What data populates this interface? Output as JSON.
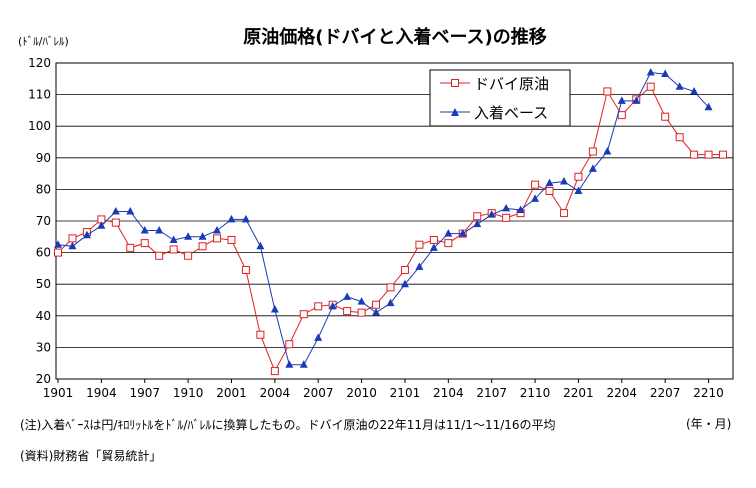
{
  "chart_data": {
    "type": "line",
    "title": "原油価格(ドバイと入着ベース)の推移",
    "unit_label": "(ﾄﾞﾙ/ﾊﾞﾚﾙ)",
    "x_axis_unit": "(年・月)",
    "ylim": [
      20,
      120
    ],
    "yticks": [
      20,
      30,
      40,
      50,
      60,
      70,
      80,
      90,
      100,
      110,
      120
    ],
    "grid": true,
    "legend_position": "top-right",
    "x_tick_labels": [
      "1901",
      "1904",
      "1907",
      "1910",
      "2001",
      "2004",
      "2007",
      "2010",
      "2101",
      "2104",
      "2107",
      "2110",
      "2201",
      "2204",
      "2207",
      "2210"
    ],
    "categories": [
      "1901",
      "1902",
      "1903",
      "1904",
      "1905",
      "1906",
      "1907",
      "1908",
      "1909",
      "1910",
      "1911",
      "1912",
      "2001",
      "2002",
      "2003",
      "2004",
      "2005",
      "2006",
      "2007",
      "2008",
      "2009",
      "2010",
      "2011",
      "2012",
      "2101",
      "2102",
      "2103",
      "2104",
      "2105",
      "2106",
      "2107",
      "2108",
      "2109",
      "2110",
      "2111",
      "2112",
      "2201",
      "2202",
      "2203",
      "2204",
      "2205",
      "2206",
      "2207",
      "2208",
      "2209",
      "2210",
      "2211"
    ],
    "series": [
      {
        "name": "ドバイ原油",
        "color": "#e02020",
        "marker": "open-square",
        "values": [
          60,
          64.5,
          66.5,
          70.5,
          69.5,
          61.5,
          63,
          59,
          61,
          59,
          62,
          64.5,
          64,
          54.5,
          34,
          22.5,
          31,
          40.5,
          43,
          43.5,
          41.5,
          41,
          43.5,
          49,
          54.5,
          62.5,
          64,
          63,
          66,
          71.5,
          72.5,
          71,
          72.5,
          81.5,
          79.5,
          72.5,
          84,
          92,
          111,
          103.5,
          108.5,
          112.5,
          103,
          96.5,
          91,
          91,
          91
        ]
      },
      {
        "name": "入着ベース",
        "color": "#1a3ab8",
        "marker": "filled-triangle",
        "values": [
          62.5,
          62,
          65.5,
          68.5,
          73,
          73,
          67,
          67,
          64,
          65,
          65,
          67,
          70.5,
          70.5,
          62,
          42,
          24.5,
          24.5,
          33,
          43,
          46,
          44.5,
          41,
          44,
          50,
          55.5,
          61.5,
          66,
          66,
          69,
          72,
          74,
          73.5,
          77,
          82,
          82.5,
          79.5,
          86.5,
          92,
          108,
          108,
          117,
          116.5,
          112.5,
          111,
          106,
          null
        ]
      }
    ]
  },
  "notes": {
    "note1": "(注)入着ﾍﾞｰｽは円/ｷﾛﾘｯﾄﾙをﾄﾞﾙ/ﾊﾞﾚﾙに換算したもの。ドバイ原油の22年11月は11/1～11/16の平均",
    "source": "(資料)財務省「貿易統計」"
  }
}
